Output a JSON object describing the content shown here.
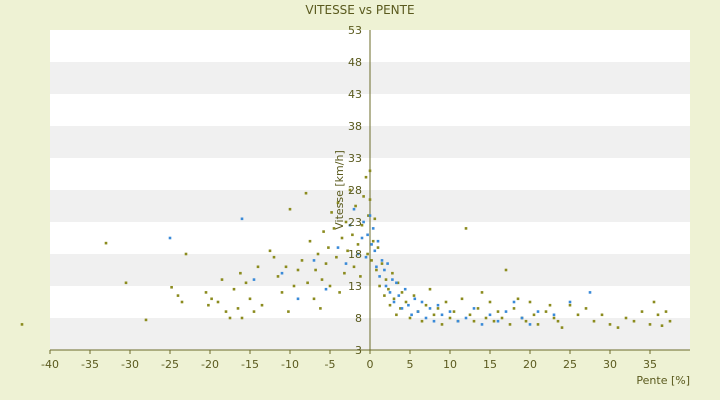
{
  "chart_data": {
    "type": "scatter",
    "title": "VITESSE vs PENTE",
    "xlabel": "Pente [%]",
    "ylabel": "Vitesse [km/h]",
    "xlim": [
      -40,
      40
    ],
    "ylim": [
      3,
      53
    ],
    "x_ticks": [
      -40,
      -35,
      -30,
      -25,
      -20,
      -15,
      -10,
      -5,
      0,
      5,
      10,
      15,
      20,
      25,
      30,
      35
    ],
    "y_ticks": [
      3,
      8,
      13,
      18,
      23,
      28,
      33,
      38,
      43,
      48,
      53
    ],
    "x_tick_labels": [
      "-40",
      "-35",
      "-30",
      "-25",
      "-20",
      "-15",
      "-10",
      "-5",
      "0",
      "5",
      "10",
      "15",
      "20",
      "25",
      "30",
      "35"
    ],
    "y_tick_labels": [
      "3",
      "8",
      "13",
      "18",
      "23",
      "28",
      "33",
      "38",
      "43",
      "48",
      "53"
    ],
    "grid": true,
    "legend": "none",
    "colors": {
      "background": "#eef2d4",
      "band_white": "#ffffff",
      "band_gray": "#f0f0f0",
      "axis": "#6b6b2a",
      "text": "#5a5a1e",
      "series_a": "#8b8b1e",
      "series_b": "#3a8ad8"
    },
    "series": [
      {
        "color": "#8b8b1e",
        "points": [
          [
            -43.5,
            7.0
          ],
          [
            -33.0,
            19.7
          ],
          [
            -30.5,
            13.5
          ],
          [
            -28.0,
            7.7
          ],
          [
            -24.8,
            12.8
          ],
          [
            -24.0,
            11.5
          ],
          [
            -23.5,
            10.5
          ],
          [
            -23.0,
            18.0
          ],
          [
            -20.5,
            12.0
          ],
          [
            -20.2,
            10.0
          ],
          [
            -19.8,
            11.0
          ],
          [
            -19.0,
            10.5
          ],
          [
            -18.5,
            14.0
          ],
          [
            -18.0,
            9.0
          ],
          [
            -17.5,
            8.0
          ],
          [
            -17.0,
            12.5
          ],
          [
            -16.5,
            9.5
          ],
          [
            -16.2,
            15.0
          ],
          [
            -16.0,
            8.0
          ],
          [
            -15.5,
            13.5
          ],
          [
            -15.0,
            11.0
          ],
          [
            -14.5,
            9.0
          ],
          [
            -14.0,
            16.0
          ],
          [
            -13.5,
            10.0
          ],
          [
            -12.5,
            18.5
          ],
          [
            -12.0,
            17.5
          ],
          [
            -11.5,
            14.5
          ],
          [
            -11.0,
            12.0
          ],
          [
            -10.5,
            16.0
          ],
          [
            -10.2,
            9.0
          ],
          [
            -10.0,
            25.0
          ],
          [
            -9.5,
            13.0
          ],
          [
            -9.0,
            15.5
          ],
          [
            -8.5,
            17.0
          ],
          [
            -8.0,
            27.5
          ],
          [
            -7.8,
            13.5
          ],
          [
            -7.5,
            20.0
          ],
          [
            -7.0,
            11.0
          ],
          [
            -6.8,
            15.5
          ],
          [
            -6.5,
            18.0
          ],
          [
            -6.2,
            9.5
          ],
          [
            -6.0,
            14.0
          ],
          [
            -5.8,
            21.5
          ],
          [
            -5.5,
            16.5
          ],
          [
            -5.2,
            19.0
          ],
          [
            -5.0,
            13.0
          ],
          [
            -4.8,
            24.5
          ],
          [
            -4.5,
            22.0
          ],
          [
            -4.2,
            17.5
          ],
          [
            -4.0,
            26.0
          ],
          [
            -3.8,
            12.0
          ],
          [
            -3.5,
            20.5
          ],
          [
            -3.2,
            15.0
          ],
          [
            -3.0,
            23.0
          ],
          [
            -2.8,
            18.5
          ],
          [
            -2.5,
            28.0
          ],
          [
            -2.2,
            21.0
          ],
          [
            -2.0,
            16.0
          ],
          [
            -1.8,
            25.5
          ],
          [
            -1.5,
            19.5
          ],
          [
            -1.2,
            14.5
          ],
          [
            -1.0,
            22.5
          ],
          [
            -0.8,
            27.0
          ],
          [
            -0.5,
            30.0
          ],
          [
            -0.3,
            18.0
          ],
          [
            -0.2,
            24.0
          ],
          [
            0.0,
            26.5
          ],
          [
            0.0,
            31.0
          ],
          [
            0.2,
            17.0
          ],
          [
            0.4,
            20.0
          ],
          [
            0.6,
            23.5
          ],
          [
            0.8,
            15.5
          ],
          [
            1.0,
            19.0
          ],
          [
            1.2,
            13.0
          ],
          [
            1.5,
            16.5
          ],
          [
            1.8,
            11.5
          ],
          [
            2.0,
            14.0
          ],
          [
            2.3,
            12.5
          ],
          [
            2.5,
            10.0
          ],
          [
            2.8,
            15.0
          ],
          [
            3.0,
            11.0
          ],
          [
            3.3,
            8.5
          ],
          [
            3.5,
            13.5
          ],
          [
            3.8,
            9.5
          ],
          [
            4.0,
            12.0
          ],
          [
            4.5,
            10.5
          ],
          [
            5.0,
            8.0
          ],
          [
            5.5,
            11.5
          ],
          [
            6.0,
            9.0
          ],
          [
            6.5,
            7.5
          ],
          [
            7.0,
            10.0
          ],
          [
            7.5,
            12.5
          ],
          [
            8.0,
            8.5
          ],
          [
            8.5,
            9.5
          ],
          [
            9.0,
            7.0
          ],
          [
            9.5,
            10.5
          ],
          [
            10.0,
            8.0
          ],
          [
            10.5,
            9.0
          ],
          [
            11.0,
            7.5
          ],
          [
            11.5,
            11.0
          ],
          [
            12.0,
            22.0
          ],
          [
            12.5,
            8.5
          ],
          [
            13.0,
            7.5
          ],
          [
            13.5,
            9.5
          ],
          [
            14.0,
            12.0
          ],
          [
            14.5,
            8.0
          ],
          [
            15.0,
            10.5
          ],
          [
            15.5,
            7.5
          ],
          [
            16.0,
            9.0
          ],
          [
            16.5,
            8.0
          ],
          [
            17.0,
            15.5
          ],
          [
            17.5,
            7.0
          ],
          [
            18.0,
            9.5
          ],
          [
            18.5,
            11.0
          ],
          [
            19.0,
            8.0
          ],
          [
            19.5,
            7.5
          ],
          [
            20.0,
            10.5
          ],
          [
            20.5,
            8.5
          ],
          [
            21.0,
            7.0
          ],
          [
            22.0,
            9.0
          ],
          [
            22.5,
            10.0
          ],
          [
            23.0,
            8.0
          ],
          [
            23.5,
            7.5
          ],
          [
            24.0,
            6.5
          ],
          [
            25.0,
            10.0
          ],
          [
            26.0,
            8.5
          ],
          [
            27.0,
            9.5
          ],
          [
            28.0,
            7.5
          ],
          [
            29.0,
            8.5
          ],
          [
            30.0,
            7.0
          ],
          [
            31.0,
            6.5
          ],
          [
            32.0,
            8.0
          ],
          [
            33.0,
            7.5
          ],
          [
            34.0,
            9.0
          ],
          [
            35.0,
            7.0
          ],
          [
            35.5,
            10.5
          ],
          [
            36.0,
            8.5
          ],
          [
            36.5,
            6.8
          ],
          [
            37.0,
            9.0
          ],
          [
            37.5,
            7.5
          ]
        ]
      },
      {
        "color": "#3a8ad8",
        "points": [
          [
            -25.0,
            20.5
          ],
          [
            -16.0,
            23.5
          ],
          [
            -14.5,
            14.0
          ],
          [
            -11.0,
            15.0
          ],
          [
            -9.0,
            11.0
          ],
          [
            -7.0,
            17.0
          ],
          [
            -5.5,
            12.5
          ],
          [
            -4.0,
            19.0
          ],
          [
            -3.0,
            16.5
          ],
          [
            -2.5,
            22.5
          ],
          [
            -2.0,
            25.0
          ],
          [
            -1.5,
            18.0
          ],
          [
            -1.0,
            20.5
          ],
          [
            -0.8,
            23.0
          ],
          [
            -0.5,
            17.5
          ],
          [
            -0.3,
            21.0
          ],
          [
            0.0,
            24.0
          ],
          [
            0.2,
            19.5
          ],
          [
            0.4,
            22.0
          ],
          [
            0.6,
            18.5
          ],
          [
            0.8,
            16.0
          ],
          [
            1.0,
            20.0
          ],
          [
            1.2,
            14.5
          ],
          [
            1.5,
            17.0
          ],
          [
            1.8,
            15.5
          ],
          [
            2.0,
            13.0
          ],
          [
            2.2,
            16.5
          ],
          [
            2.5,
            12.0
          ],
          [
            2.8,
            14.0
          ],
          [
            3.0,
            10.5
          ],
          [
            3.3,
            13.5
          ],
          [
            3.6,
            11.5
          ],
          [
            4.0,
            9.5
          ],
          [
            4.4,
            12.5
          ],
          [
            4.8,
            10.0
          ],
          [
            5.2,
            8.5
          ],
          [
            5.6,
            11.0
          ],
          [
            6.0,
            9.0
          ],
          [
            6.5,
            10.5
          ],
          [
            7.0,
            8.0
          ],
          [
            7.5,
            9.5
          ],
          [
            8.0,
            7.5
          ],
          [
            8.5,
            10.0
          ],
          [
            9.0,
            8.5
          ],
          [
            10.0,
            9.0
          ],
          [
            11.0,
            7.5
          ],
          [
            12.0,
            8.0
          ],
          [
            13.0,
            9.5
          ],
          [
            14.0,
            7.0
          ],
          [
            15.0,
            8.5
          ],
          [
            16.0,
            7.5
          ],
          [
            17.0,
            9.0
          ],
          [
            18.0,
            10.5
          ],
          [
            19.0,
            8.0
          ],
          [
            20.0,
            7.0
          ],
          [
            21.0,
            9.0
          ],
          [
            23.0,
            8.5
          ],
          [
            25.0,
            10.5
          ],
          [
            27.5,
            12.0
          ]
        ]
      }
    ]
  }
}
